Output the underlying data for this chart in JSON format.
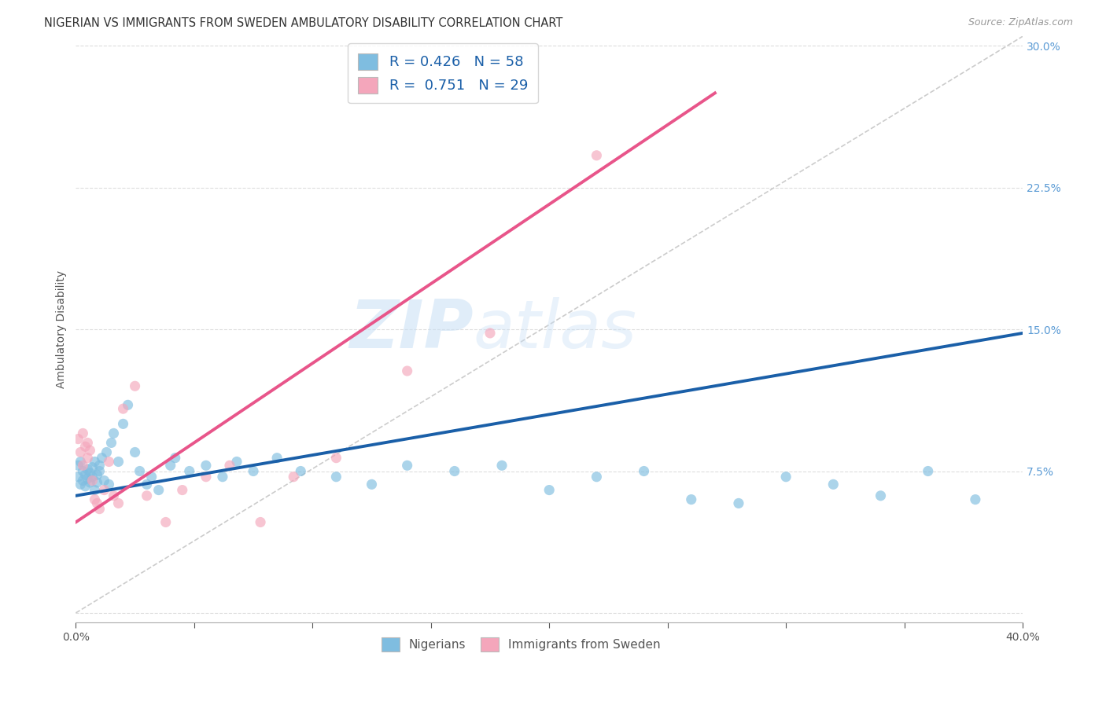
{
  "title": "NIGERIAN VS IMMIGRANTS FROM SWEDEN AMBULATORY DISABILITY CORRELATION CHART",
  "source": "Source: ZipAtlas.com",
  "ylabel": "Ambulatory Disability",
  "xlabel": "",
  "xlim": [
    0.0,
    0.4
  ],
  "ylim": [
    -0.005,
    0.305
  ],
  "xticks": [
    0.0,
    0.05,
    0.1,
    0.15,
    0.2,
    0.25,
    0.3,
    0.35,
    0.4
  ],
  "yticks": [
    0.0,
    0.075,
    0.15,
    0.225,
    0.3
  ],
  "background_color": "#ffffff",
  "grid_color": "#dddddd",
  "watermark_zip": "ZIP",
  "watermark_atlas": "atlas",
  "blue_color": "#7fbde0",
  "pink_color": "#f4a6bb",
  "blue_line_color": "#1a5fa8",
  "pink_line_color": "#e8558a",
  "diag_line_color": "#cccccc",
  "nigerians_label": "Nigerians",
  "sweden_label": "Immigrants from Sweden",
  "blue_scatter_x": [
    0.001,
    0.001,
    0.002,
    0.002,
    0.003,
    0.003,
    0.004,
    0.004,
    0.005,
    0.005,
    0.006,
    0.006,
    0.007,
    0.007,
    0.008,
    0.008,
    0.009,
    0.009,
    0.01,
    0.01,
    0.011,
    0.012,
    0.013,
    0.014,
    0.015,
    0.016,
    0.018,
    0.02,
    0.022,
    0.025,
    0.027,
    0.03,
    0.032,
    0.035,
    0.04,
    0.042,
    0.048,
    0.055,
    0.062,
    0.068,
    0.075,
    0.085,
    0.095,
    0.11,
    0.125,
    0.14,
    0.16,
    0.18,
    0.2,
    0.22,
    0.24,
    0.26,
    0.28,
    0.3,
    0.32,
    0.34,
    0.36,
    0.38
  ],
  "blue_scatter_y": [
    0.078,
    0.072,
    0.08,
    0.068,
    0.075,
    0.07,
    0.073,
    0.067,
    0.076,
    0.071,
    0.069,
    0.074,
    0.072,
    0.077,
    0.065,
    0.08,
    0.073,
    0.069,
    0.075,
    0.078,
    0.082,
    0.07,
    0.085,
    0.068,
    0.09,
    0.095,
    0.08,
    0.1,
    0.11,
    0.085,
    0.075,
    0.068,
    0.072,
    0.065,
    0.078,
    0.082,
    0.075,
    0.078,
    0.072,
    0.08,
    0.075,
    0.082,
    0.075,
    0.072,
    0.068,
    0.078,
    0.075,
    0.078,
    0.065,
    0.072,
    0.075,
    0.06,
    0.058,
    0.072,
    0.068,
    0.062,
    0.075,
    0.06
  ],
  "pink_scatter_x": [
    0.001,
    0.002,
    0.003,
    0.003,
    0.004,
    0.005,
    0.005,
    0.006,
    0.007,
    0.008,
    0.009,
    0.01,
    0.012,
    0.014,
    0.016,
    0.018,
    0.02,
    0.025,
    0.03,
    0.038,
    0.045,
    0.055,
    0.065,
    0.078,
    0.092,
    0.11,
    0.14,
    0.175,
    0.22
  ],
  "pink_scatter_y": [
    0.092,
    0.085,
    0.095,
    0.078,
    0.088,
    0.09,
    0.082,
    0.086,
    0.07,
    0.06,
    0.058,
    0.055,
    0.065,
    0.08,
    0.062,
    0.058,
    0.108,
    0.12,
    0.062,
    0.048,
    0.065,
    0.072,
    0.078,
    0.048,
    0.072,
    0.082,
    0.128,
    0.148,
    0.242
  ],
  "blue_line_x": [
    0.0,
    0.4
  ],
  "blue_line_y": [
    0.062,
    0.148
  ],
  "pink_line_x": [
    0.0,
    0.27
  ],
  "pink_line_y": [
    0.048,
    0.275
  ],
  "diag_line_x": [
    0.0,
    0.4
  ],
  "diag_line_y": [
    0.0,
    0.305
  ]
}
